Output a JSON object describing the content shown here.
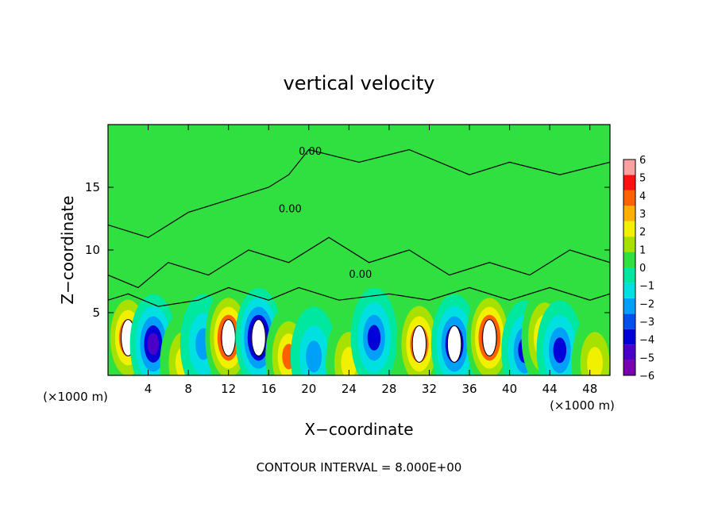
{
  "chart_data": {
    "type": "heatmap",
    "title": "vertical velocity",
    "xlabel": "X−coordinate",
    "ylabel": "Z−coordinate",
    "x_unit_left": "(×1000 m)",
    "x_unit_right": "(×1000 m)",
    "footer": "CONTOUR INTERVAL = 8.000E+00",
    "xlim": [
      0,
      50
    ],
    "ylim": [
      0,
      20
    ],
    "x_ticks": [
      4,
      8,
      12,
      16,
      20,
      24,
      28,
      32,
      36,
      40,
      44,
      48
    ],
    "y_ticks": [
      5,
      10,
      15
    ],
    "contour_label": "0.00",
    "colorbar": {
      "min": -6,
      "max": 6,
      "ticks": [
        6,
        5,
        4,
        3,
        2,
        1,
        0,
        -1,
        -2,
        -3,
        -4,
        -5,
        -6
      ],
      "tick_labels": [
        "6",
        "5",
        "4",
        "3",
        "2",
        "1",
        "0",
        "−1",
        "−2",
        "−3",
        "−4",
        "−5",
        "−6"
      ],
      "colors": [
        "#7a00b0",
        "#4b00c8",
        "#0000d8",
        "#0050f0",
        "#00a0f8",
        "#00e0e0",
        "#00e8a0",
        "#30e040",
        "#a8e000",
        "#f0f000",
        "#ffb000",
        "#ff6000",
        "#ff1010",
        "#ffa0a0"
      ]
    },
    "cells": [
      {
        "x": 2.0,
        "z": 3.0,
        "w": 5.0
      },
      {
        "x": 4.5,
        "z": 2.5,
        "w": -4.5
      },
      {
        "x": 7.5,
        "z": 1.0,
        "w": 3.0
      },
      {
        "x": 9.5,
        "z": 2.5,
        "w": -3.0
      },
      {
        "x": 12.0,
        "z": 3.0,
        "w": 5.5
      },
      {
        "x": 15.0,
        "z": 3.0,
        "w": -5.5
      },
      {
        "x": 18.0,
        "z": 1.5,
        "w": 4.0
      },
      {
        "x": 20.5,
        "z": 1.5,
        "w": -3.0
      },
      {
        "x": 24.0,
        "z": 1.0,
        "w": 2.5
      },
      {
        "x": 26.5,
        "z": 3.0,
        "w": -4.0
      },
      {
        "x": 31.0,
        "z": 2.5,
        "w": 5.0
      },
      {
        "x": 34.5,
        "z": 2.5,
        "w": -5.0
      },
      {
        "x": 38.0,
        "z": 3.0,
        "w": 5.5
      },
      {
        "x": 41.5,
        "z": 2.0,
        "w": -3.5
      },
      {
        "x": 43.5,
        "z": 3.0,
        "w": 4.0
      },
      {
        "x": 45.0,
        "z": 2.0,
        "w": -4.0
      },
      {
        "x": 48.5,
        "z": 1.0,
        "w": 2.5
      }
    ]
  }
}
